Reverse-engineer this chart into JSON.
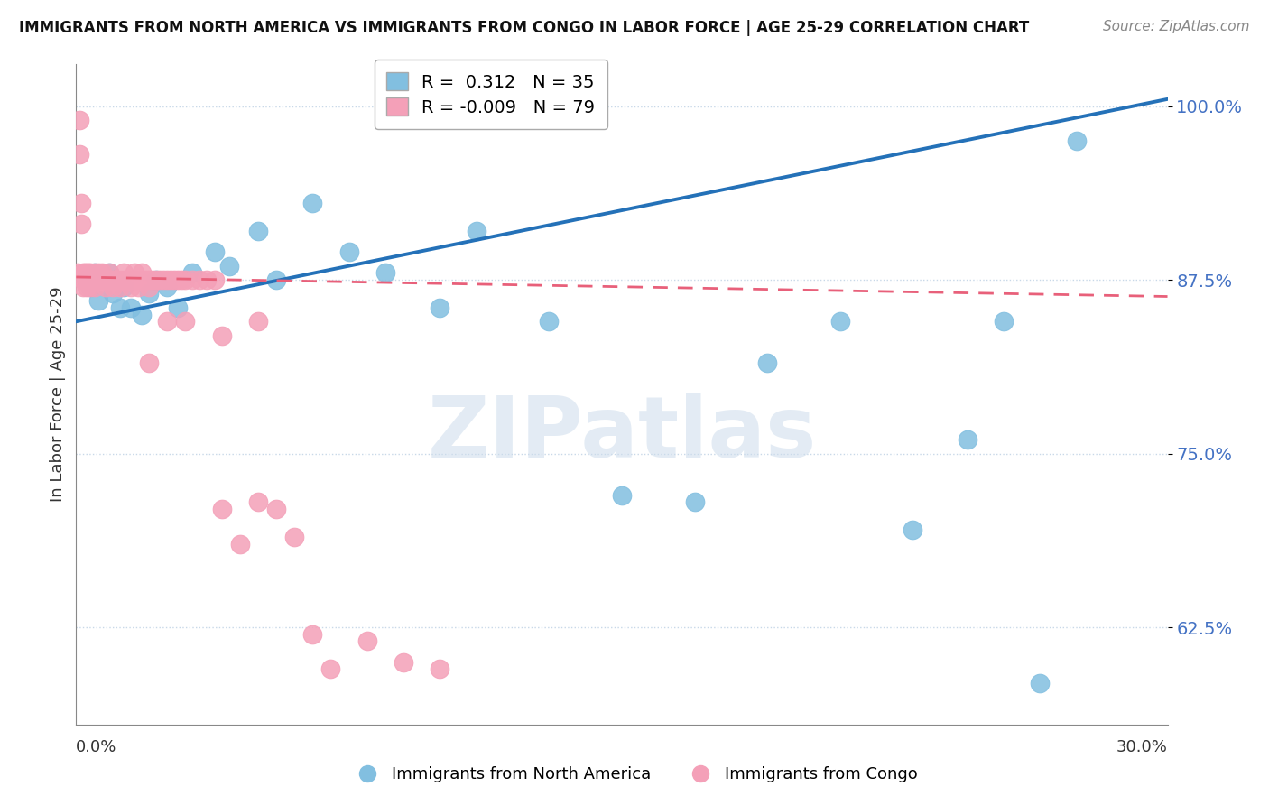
{
  "title": "IMMIGRANTS FROM NORTH AMERICA VS IMMIGRANTS FROM CONGO IN LABOR FORCE | AGE 25-29 CORRELATION CHART",
  "source": "Source: ZipAtlas.com",
  "ylabel": "In Labor Force | Age 25-29",
  "ylim": [
    0.555,
    1.03
  ],
  "xlim": [
    0.0,
    0.3
  ],
  "blue_R": 0.312,
  "blue_N": 35,
  "pink_R": -0.009,
  "pink_N": 79,
  "blue_color": "#82bfe0",
  "pink_color": "#f4a0b8",
  "blue_line_color": "#2471b8",
  "pink_line_color": "#e8607a",
  "grid_color": "#cccccc",
  "ytick_positions": [
    0.625,
    0.75,
    0.875,
    1.0
  ],
  "ytick_labels": [
    "62.5%",
    "75.0%",
    "87.5%",
    "100.0%"
  ],
  "blue_trend_x0": 0.0,
  "blue_trend_y0": 0.845,
  "blue_trend_x1": 0.3,
  "blue_trend_y1": 1.005,
  "pink_trend_x0": 0.0,
  "pink_trend_y0": 0.877,
  "pink_trend_x1": 0.3,
  "pink_trend_y1": 0.863,
  "blue_x": [
    0.003,
    0.004,
    0.005,
    0.006,
    0.008,
    0.009,
    0.01,
    0.012,
    0.013,
    0.015,
    0.018,
    0.02,
    0.022,
    0.025,
    0.028,
    0.032,
    0.038,
    0.042,
    0.05,
    0.055,
    0.065,
    0.075,
    0.085,
    0.1,
    0.11,
    0.13,
    0.15,
    0.17,
    0.19,
    0.21,
    0.23,
    0.245,
    0.255,
    0.265,
    0.275
  ],
  "blue_y": [
    0.875,
    0.87,
    0.88,
    0.86,
    0.875,
    0.88,
    0.865,
    0.855,
    0.87,
    0.855,
    0.85,
    0.865,
    0.875,
    0.87,
    0.855,
    0.88,
    0.895,
    0.885,
    0.91,
    0.875,
    0.93,
    0.895,
    0.88,
    0.855,
    0.91,
    0.845,
    0.72,
    0.715,
    0.815,
    0.845,
    0.695,
    0.76,
    0.845,
    0.585,
    0.975
  ],
  "pink_x": [
    0.0005,
    0.001,
    0.001,
    0.0015,
    0.0015,
    0.002,
    0.002,
    0.002,
    0.0025,
    0.003,
    0.003,
    0.003,
    0.003,
    0.0035,
    0.004,
    0.004,
    0.004,
    0.004,
    0.005,
    0.005,
    0.005,
    0.005,
    0.006,
    0.006,
    0.006,
    0.007,
    0.007,
    0.008,
    0.008,
    0.009,
    0.009,
    0.01,
    0.01,
    0.011,
    0.011,
    0.012,
    0.012,
    0.013,
    0.013,
    0.014,
    0.015,
    0.015,
    0.016,
    0.016,
    0.017,
    0.018,
    0.018,
    0.019,
    0.02,
    0.02,
    0.021,
    0.022,
    0.023,
    0.024,
    0.025,
    0.026,
    0.027,
    0.028,
    0.029,
    0.03,
    0.032,
    0.034,
    0.036,
    0.038,
    0.04,
    0.045,
    0.05,
    0.055,
    0.06,
    0.065,
    0.07,
    0.08,
    0.09,
    0.1,
    0.02,
    0.025,
    0.03,
    0.04,
    0.05
  ],
  "pink_y": [
    0.88,
    0.965,
    0.99,
    0.915,
    0.93,
    0.875,
    0.88,
    0.87,
    0.88,
    0.875,
    0.88,
    0.875,
    0.87,
    0.88,
    0.875,
    0.87,
    0.875,
    0.88,
    0.875,
    0.87,
    0.875,
    0.88,
    0.875,
    0.88,
    0.875,
    0.875,
    0.88,
    0.875,
    0.87,
    0.875,
    0.88,
    0.875,
    0.87,
    0.875,
    0.875,
    0.87,
    0.875,
    0.875,
    0.88,
    0.875,
    0.875,
    0.87,
    0.88,
    0.875,
    0.87,
    0.875,
    0.88,
    0.875,
    0.875,
    0.87,
    0.875,
    0.875,
    0.875,
    0.875,
    0.875,
    0.875,
    0.875,
    0.875,
    0.875,
    0.875,
    0.875,
    0.875,
    0.875,
    0.875,
    0.71,
    0.685,
    0.715,
    0.71,
    0.69,
    0.62,
    0.595,
    0.615,
    0.6,
    0.595,
    0.815,
    0.845,
    0.845,
    0.835,
    0.845
  ]
}
